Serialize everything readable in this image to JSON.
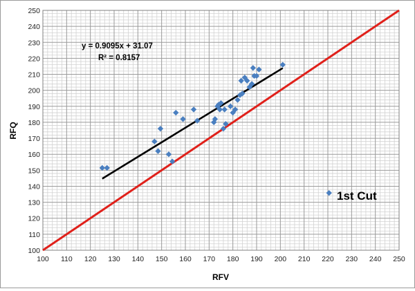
{
  "chart_data": {
    "type": "scatter",
    "xlabel": "RFV",
    "ylabel": "RFQ",
    "xlim": [
      100,
      250
    ],
    "ylim": [
      100,
      250
    ],
    "x_ticks": [
      "100",
      "110",
      "120",
      "130",
      "140",
      "150",
      "160",
      "170",
      "180",
      "190",
      "200",
      "210",
      "220",
      "230",
      "240",
      "250"
    ],
    "y_ticks": [
      "100",
      "110",
      "120",
      "130",
      "140",
      "150",
      "160",
      "170",
      "180",
      "190",
      "200",
      "210",
      "220",
      "230",
      "240",
      "250"
    ],
    "minor_grid_step": 2,
    "grid": true,
    "legend": {
      "label": "1st Cut",
      "position": "lower-right"
    },
    "equation_text": "y = 0.9095x + 31.07",
    "r2_text": "R² = 0.8157",
    "series": [
      {
        "name": "1st Cut",
        "color": "#4a7fc0",
        "marker": "diamond",
        "points": [
          [
            125,
            151.5
          ],
          [
            127,
            151.5
          ],
          [
            147,
            168
          ],
          [
            148.5,
            162
          ],
          [
            149.5,
            176
          ],
          [
            153,
            160
          ],
          [
            154.5,
            155.5
          ],
          [
            156,
            186
          ],
          [
            159,
            182
          ],
          [
            163.5,
            188
          ],
          [
            165,
            181
          ],
          [
            172,
            180
          ],
          [
            172.5,
            182
          ],
          [
            173.5,
            190
          ],
          [
            174,
            191
          ],
          [
            174.5,
            188
          ],
          [
            175,
            192
          ],
          [
            176,
            176
          ],
          [
            176.5,
            188
          ],
          [
            177,
            179
          ],
          [
            179,
            190
          ],
          [
            180,
            186
          ],
          [
            181,
            188
          ],
          [
            182,
            194
          ],
          [
            183,
            197
          ],
          [
            183.5,
            206
          ],
          [
            184,
            198
          ],
          [
            185,
            208
          ],
          [
            186,
            206
          ],
          [
            187,
            202
          ],
          [
            188,
            204
          ],
          [
            188.5,
            214
          ],
          [
            189,
            209
          ],
          [
            190,
            209
          ],
          [
            191,
            213
          ],
          [
            201,
            216
          ]
        ]
      }
    ],
    "trendline": {
      "slope": 0.9095,
      "intercept": 31.07,
      "x_range": [
        125,
        201
      ],
      "color": "#000000"
    },
    "reference_line": {
      "from": [
        100,
        100
      ],
      "to": [
        250,
        250
      ],
      "color": "#e0201a"
    }
  }
}
